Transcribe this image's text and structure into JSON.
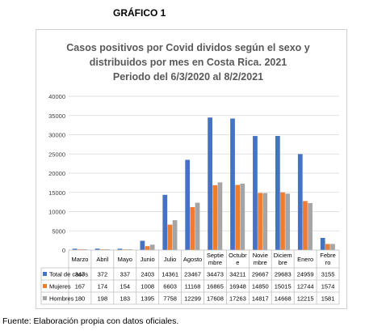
{
  "document": {
    "label": "GRÁFICO 1",
    "source": "Fuente: Elaboración propia con datos oficiales."
  },
  "chart_data": {
    "type": "bar",
    "title": [
      "Casos positivos por Covid dividos según el sexo y",
      "distribuidos por mes en Costa Rica. 2021",
      "Periodo del 6/3/2020 al 8/2/2021"
    ],
    "categories": [
      "Marzo",
      "Abril",
      "Mayo",
      "Junio",
      "Julio",
      "Agosto",
      "Septiembre",
      "Octubre",
      "Noviembre",
      "Diciembre",
      "Enero",
      "Febrero"
    ],
    "category_lines": [
      [
        "Marzo"
      ],
      [
        "Abril"
      ],
      [
        "Mayo"
      ],
      [
        "Junio"
      ],
      [
        "Julio"
      ],
      [
        "Agosto"
      ],
      [
        "Septie",
        "mbre"
      ],
      [
        "Octubr",
        "e"
      ],
      [
        "Novie",
        "mbre"
      ],
      [
        "Diciem",
        "bre"
      ],
      [
        "Enero"
      ],
      [
        "Febre",
        "ro"
      ]
    ],
    "series": [
      {
        "name": "Total de casos",
        "color": "#4472C4",
        "values": [
          347,
          372,
          337,
          2403,
          14361,
          23467,
          34473,
          34211,
          29667,
          29683,
          24959,
          3155
        ]
      },
      {
        "name": "Mujeres",
        "color": "#ED7D31",
        "values": [
          167,
          174,
          154,
          1008,
          6603,
          11168,
          16865,
          16948,
          14850,
          15015,
          12744,
          1574
        ]
      },
      {
        "name": "Hombres",
        "color": "#A5A5A5",
        "values": [
          180,
          198,
          183,
          1395,
          7758,
          12299,
          17608,
          17263,
          14817,
          14668,
          12215,
          1581
        ]
      }
    ],
    "yticks": [
      "0",
      "5000",
      "10000",
      "15000",
      "20000",
      "25000",
      "30000",
      "35000",
      "40000"
    ],
    "ylim": [
      0,
      40000
    ],
    "grid": true,
    "legend": "data-table-below"
  }
}
